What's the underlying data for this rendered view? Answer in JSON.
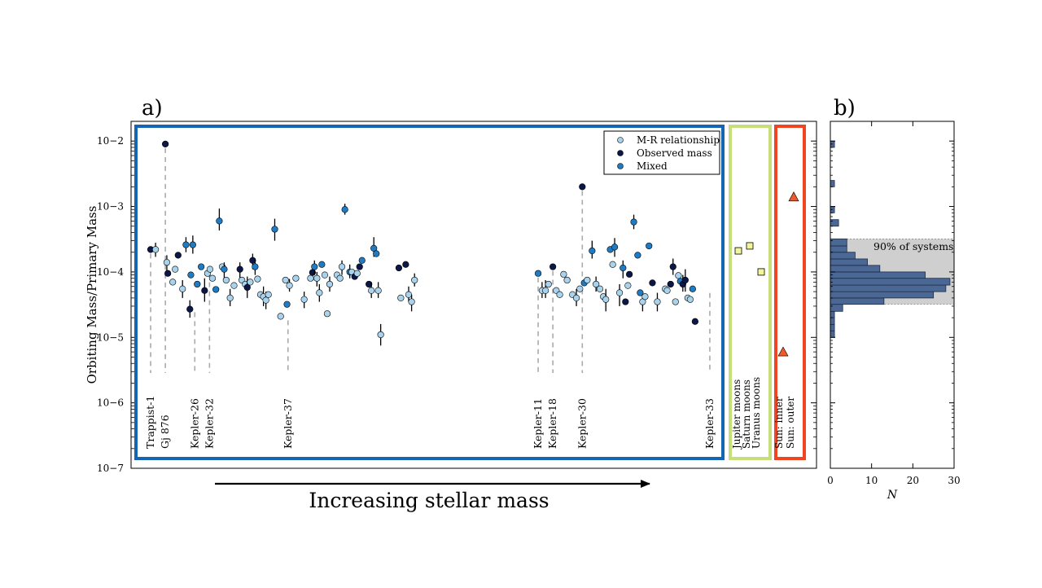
{
  "panels": {
    "a": {
      "label": "a)",
      "ylabel": "Orbiting Mass/Primary Mass",
      "arrow_label": "Increasing stellar mass"
    },
    "b": {
      "label": "b)",
      "xlabel": "N",
      "annotation": "90% of systems"
    }
  },
  "colors": {
    "mr": "#a9d3ec",
    "observed": "#0b1746",
    "mixed": "#1f7cc4",
    "exoplanet_box": "#1565b5",
    "moons_box": "#c7df7b",
    "moons_marker": "#f2f59a",
    "sun_box": "#ef4522",
    "sun_marker": "#f05a28",
    "hist_fill": "#4b6895",
    "shade": "#cfcfcf",
    "errorbar": "#000000",
    "dashed": "#aaaaaa"
  },
  "chart_data": [
    {
      "type": "scatter",
      "panel": "a",
      "ylabel": "Orbiting Mass/Primary Mass",
      "yscale": "log",
      "ylim": [
        1e-07,
        0.02
      ],
      "yticks": [
        {
          "value": 1e-07,
          "label": "10−7"
        },
        {
          "value": 1e-06,
          "label": "10−6"
        },
        {
          "value": 1e-05,
          "label": "10−5"
        },
        {
          "value": 0.0001,
          "label": "10−4"
        },
        {
          "value": 0.001,
          "label": "10−3"
        },
        {
          "value": 0.01,
          "label": "10−2"
        }
      ],
      "legend": {
        "position": "top-right",
        "entries": [
          {
            "label": "M-R relationship",
            "type": "mr"
          },
          {
            "label": "Observed mass",
            "type": "observed"
          },
          {
            "label": "Mixed",
            "type": "mixed"
          }
        ]
      },
      "system_labels": [
        {
          "label": "Trappist-1",
          "x": 2,
          "y": 0.00022
        },
        {
          "label": "Gj 876",
          "x": 5,
          "y": 0.009
        },
        {
          "label": "Kepler-26",
          "x": 11,
          "y": 2.8e-05
        },
        {
          "label": "Kepler-32",
          "x": 14,
          "y": 0.00011
        },
        {
          "label": "Kepler-37",
          "x": 30,
          "y": 2.1e-05
        },
        {
          "label": "Kepler-11",
          "x": 81,
          "y": 9.5e-05
        },
        {
          "label": "Kepler-18",
          "x": 84,
          "y": 0.00012
        },
        {
          "label": "Kepler-30",
          "x": 90,
          "y": 0.002
        },
        {
          "label": "Kepler-33",
          "x": 116,
          "y": 5.5e-05
        }
      ],
      "points": [
        {
          "x": 2,
          "y": 0.00022,
          "t": "observed"
        },
        {
          "x": 3,
          "y": 0.00022,
          "t": "mr",
          "lo": 0.00017,
          "hi": 0.00028
        },
        {
          "x": 5,
          "y": 0.009,
          "t": "observed"
        },
        {
          "x": 5.3,
          "y": 0.00014,
          "t": "mr",
          "lo": 0.0001,
          "hi": 0.00018
        },
        {
          "x": 5.5,
          "y": 9.5e-05,
          "t": "observed"
        },
        {
          "x": 6.5,
          "y": 7e-05,
          "t": "mr"
        },
        {
          "x": 7,
          "y": 0.00011,
          "t": "mr"
        },
        {
          "x": 7.6,
          "y": 0.00018,
          "t": "observed"
        },
        {
          "x": 8.5,
          "y": 5.5e-05,
          "t": "mr",
          "lo": 4e-05,
          "hi": 7.5e-05
        },
        {
          "x": 9.2,
          "y": 0.00026,
          "t": "mixed",
          "lo": 0.0002,
          "hi": 0.00034
        },
        {
          "x": 10.6,
          "y": 0.00026,
          "t": "mixed",
          "lo": 0.00019,
          "hi": 0.00036
        },
        {
          "x": 10,
          "y": 2.7e-05,
          "t": "observed",
          "lo": 2e-05,
          "hi": 3.7e-05
        },
        {
          "x": 10.2,
          "y": 9e-05,
          "t": "mixed"
        },
        {
          "x": 11.5,
          "y": 6.5e-05,
          "t": "mixed"
        },
        {
          "x": 12.3,
          "y": 0.00012,
          "t": "mixed"
        },
        {
          "x": 13,
          "y": 5.2e-05,
          "t": "observed",
          "lo": 3.5e-05,
          "hi": 8e-05
        },
        {
          "x": 13.6,
          "y": 9.5e-05,
          "t": "mr"
        },
        {
          "x": 14.1,
          "y": 0.00011,
          "t": "mr"
        },
        {
          "x": 14.6,
          "y": 8e-05,
          "t": "mr"
        },
        {
          "x": 15.3,
          "y": 5.4e-05,
          "t": "mixed"
        },
        {
          "x": 16,
          "y": 0.0006,
          "t": "mixed",
          "lo": 0.00043,
          "hi": 0.00093
        },
        {
          "x": 16.6,
          "y": 0.00012,
          "t": "mr"
        },
        {
          "x": 17,
          "y": 0.00011,
          "t": "mixed",
          "lo": 8e-05,
          "hi": 0.00014
        },
        {
          "x": 17.4,
          "y": 7.5e-05,
          "t": "mr"
        },
        {
          "x": 18.2,
          "y": 4e-05,
          "t": "mr",
          "lo": 3e-05,
          "hi": 5.5e-05
        },
        {
          "x": 19,
          "y": 6.2e-05,
          "t": "mr"
        },
        {
          "x": 20.2,
          "y": 0.00011,
          "t": "observed",
          "lo": 8e-05,
          "hi": 0.00014
        },
        {
          "x": 20.6,
          "y": 7.5e-05,
          "t": "mr"
        },
        {
          "x": 21.3,
          "y": 6.5e-05,
          "t": "mr"
        },
        {
          "x": 21.7,
          "y": 5.8e-05,
          "t": "observed",
          "lo": 4e-05,
          "hi": 8.5e-05
        },
        {
          "x": 22.3,
          "y": 7e-05,
          "t": "mr"
        },
        {
          "x": 22.8,
          "y": 0.00015,
          "t": "observed",
          "lo": 0.00011,
          "hi": 0.00019
        },
        {
          "x": 23.3,
          "y": 0.00012,
          "t": "mixed",
          "lo": 9e-05,
          "hi": 0.00016
        },
        {
          "x": 23.8,
          "y": 7.8e-05,
          "t": "mr"
        },
        {
          "x": 24.4,
          "y": 4.5e-05,
          "t": "mr"
        },
        {
          "x": 25,
          "y": 4.2e-05,
          "t": "mr",
          "lo": 3e-05,
          "hi": 6e-05
        },
        {
          "x": 25.5,
          "y": 3.7e-05,
          "t": "mr",
          "lo": 2.7e-05,
          "hi": 5e-05
        },
        {
          "x": 26,
          "y": 4.5e-05,
          "t": "mr"
        },
        {
          "x": 27.3,
          "y": 0.00045,
          "t": "mixed",
          "lo": 0.0003,
          "hi": 0.00065
        },
        {
          "x": 28.5,
          "y": 2.1e-05,
          "t": "mr"
        },
        {
          "x": 29.5,
          "y": 7.5e-05,
          "t": "mr"
        },
        {
          "x": 29.8,
          "y": 3.2e-05,
          "t": "mixed"
        },
        {
          "x": 30.3,
          "y": 6.2e-05,
          "t": "mr",
          "lo": 5e-05,
          "hi": 7.8e-05
        },
        {
          "x": 31.6,
          "y": 8e-05,
          "t": "mr"
        },
        {
          "x": 33.3,
          "y": 3.8e-05,
          "t": "mr",
          "lo": 2.8e-05,
          "hi": 5e-05
        },
        {
          "x": 34.6,
          "y": 8e-05,
          "t": "mr"
        },
        {
          "x": 35,
          "y": 9.8e-05,
          "t": "observed"
        },
        {
          "x": 35.4,
          "y": 0.00012,
          "t": "mixed",
          "lo": 9e-05,
          "hi": 0.00015
        },
        {
          "x": 35.9,
          "y": 8e-05,
          "t": "mr",
          "lo": 6e-05,
          "hi": 0.0001
        },
        {
          "x": 36.4,
          "y": 4.8e-05,
          "t": "mr",
          "lo": 3.5e-05,
          "hi": 6.5e-05
        },
        {
          "x": 36.9,
          "y": 0.00013,
          "t": "mixed"
        },
        {
          "x": 37.5,
          "y": 9e-05,
          "t": "mr"
        },
        {
          "x": 38,
          "y": 2.3e-05,
          "t": "mr"
        },
        {
          "x": 38.5,
          "y": 6.5e-05,
          "t": "mr",
          "lo": 5e-05,
          "hi": 8.5e-05
        },
        {
          "x": 40,
          "y": 9e-05,
          "t": "mr"
        },
        {
          "x": 40.6,
          "y": 8e-05,
          "t": "mr"
        },
        {
          "x": 41,
          "y": 0.00012,
          "t": "mr",
          "lo": 9e-05,
          "hi": 0.00015
        },
        {
          "x": 41.6,
          "y": 0.0009,
          "t": "mixed",
          "lo": 0.00075,
          "hi": 0.0011
        },
        {
          "x": 42.6,
          "y": 0.0001,
          "t": "mixed",
          "lo": 8e-05,
          "hi": 0.00013
        },
        {
          "x": 43,
          "y": 0.0001,
          "t": "mr"
        },
        {
          "x": 43.6,
          "y": 8.5e-05,
          "t": "observed"
        },
        {
          "x": 44.1,
          "y": 9.5e-05,
          "t": "mr"
        },
        {
          "x": 44.6,
          "y": 0.00012,
          "t": "observed"
        },
        {
          "x": 45.1,
          "y": 0.00015,
          "t": "mixed"
        },
        {
          "x": 46.5,
          "y": 6.5e-05,
          "t": "observed"
        },
        {
          "x": 47,
          "y": 5.2e-05,
          "t": "mr",
          "lo": 4e-05,
          "hi": 7e-05
        },
        {
          "x": 47.5,
          "y": 0.00023,
          "t": "mixed",
          "lo": 0.00017,
          "hi": 0.00034
        },
        {
          "x": 48,
          "y": 0.00019,
          "t": "mixed"
        },
        {
          "x": 48.4,
          "y": 5.2e-05,
          "t": "mr",
          "lo": 4e-05,
          "hi": 7e-05
        },
        {
          "x": 48.9,
          "y": 1.1e-05,
          "t": "mr",
          "lo": 7.5e-06,
          "hi": 1.6e-05
        },
        {
          "x": 52.6,
          "y": 0.000115,
          "t": "observed"
        },
        {
          "x": 53,
          "y": 4e-05,
          "t": "mr"
        },
        {
          "x": 54,
          "y": 0.00013,
          "t": "observed"
        },
        {
          "x": 54.6,
          "y": 4.5e-05,
          "t": "mr",
          "lo": 3.5e-05,
          "hi": 6e-05
        },
        {
          "x": 55.2,
          "y": 3.5e-05,
          "t": "mr",
          "lo": 2.5e-05,
          "hi": 4.5e-05
        },
        {
          "x": 55.8,
          "y": 7.5e-05,
          "t": "mr",
          "lo": 6e-05,
          "hi": 9.5e-05
        },
        {
          "x": 81,
          "y": 9.5e-05,
          "t": "mixed"
        },
        {
          "x": 81.8,
          "y": 5.2e-05,
          "t": "mr",
          "lo": 4e-05,
          "hi": 7e-05
        },
        {
          "x": 82.5,
          "y": 5.2e-05,
          "t": "mr",
          "lo": 4e-05,
          "hi": 7.5e-05
        },
        {
          "x": 83.1,
          "y": 6.5e-05,
          "t": "mr"
        },
        {
          "x": 84,
          "y": 0.00012,
          "t": "observed"
        },
        {
          "x": 84.7,
          "y": 5.2e-05,
          "t": "mr"
        },
        {
          "x": 85.4,
          "y": 4.5e-05,
          "t": "mr"
        },
        {
          "x": 86.2,
          "y": 9.2e-05,
          "t": "mr"
        },
        {
          "x": 86.9,
          "y": 7.5e-05,
          "t": "mr"
        },
        {
          "x": 88,
          "y": 4.5e-05,
          "t": "mr"
        },
        {
          "x": 88.8,
          "y": 4e-05,
          "t": "mr",
          "lo": 3e-05,
          "hi": 5.5e-05
        },
        {
          "x": 89.5,
          "y": 5.5e-05,
          "t": "mr"
        },
        {
          "x": 90,
          "y": 0.002,
          "t": "observed"
        },
        {
          "x": 90.4,
          "y": 6.8e-05,
          "t": "mixed"
        },
        {
          "x": 91,
          "y": 7.5e-05,
          "t": "mr"
        },
        {
          "x": 92,
          "y": 0.00021,
          "t": "mixed",
          "lo": 0.00016,
          "hi": 0.0003
        },
        {
          "x": 92.8,
          "y": 6.5e-05,
          "t": "mr",
          "lo": 5e-05,
          "hi": 8.5e-05
        },
        {
          "x": 93.6,
          "y": 5.5e-05,
          "t": "mr"
        },
        {
          "x": 94.3,
          "y": 4.2e-05,
          "t": "mr"
        },
        {
          "x": 94.8,
          "y": 3.8e-05,
          "t": "mr",
          "lo": 2.5e-05,
          "hi": 5.5e-05
        },
        {
          "x": 95.7,
          "y": 0.00022,
          "t": "mixed"
        },
        {
          "x": 96.2,
          "y": 0.00013,
          "t": "mr"
        },
        {
          "x": 96.6,
          "y": 0.00024,
          "t": "mixed",
          "lo": 0.00017,
          "hi": 0.00033
        },
        {
          "x": 97.6,
          "y": 4.8e-05,
          "t": "mr",
          "lo": 3e-05,
          "hi": 6.5e-05
        },
        {
          "x": 98.3,
          "y": 0.000115,
          "t": "mixed",
          "lo": 8e-05,
          "hi": 0.00015
        },
        {
          "x": 98.8,
          "y": 3.5e-05,
          "t": "observed"
        },
        {
          "x": 99.3,
          "y": 6.2e-05,
          "t": "mr"
        },
        {
          "x": 99.6,
          "y": 9.2e-05,
          "t": "observed"
        },
        {
          "x": 100.5,
          "y": 0.00058,
          "t": "mixed",
          "lo": 0.00045,
          "hi": 0.00075
        },
        {
          "x": 101.3,
          "y": 0.00018,
          "t": "mixed"
        },
        {
          "x": 101.8,
          "y": 4.8e-05,
          "t": "mixed"
        },
        {
          "x": 102.3,
          "y": 3.5e-05,
          "t": "mr",
          "lo": 2.5e-05,
          "hi": 4.5e-05
        },
        {
          "x": 102.8,
          "y": 4.2e-05,
          "t": "mr"
        },
        {
          "x": 103.6,
          "y": 0.00025,
          "t": "mixed"
        },
        {
          "x": 104.3,
          "y": 6.8e-05,
          "t": "observed"
        },
        {
          "x": 105.3,
          "y": 3.5e-05,
          "t": "mr",
          "lo": 2.5e-05,
          "hi": 4.8e-05
        },
        {
          "x": 106.9,
          "y": 5.5e-05,
          "t": "mr"
        },
        {
          "x": 107.3,
          "y": 5.2e-05,
          "t": "mr"
        },
        {
          "x": 108,
          "y": 6.5e-05,
          "t": "observed"
        },
        {
          "x": 108.5,
          "y": 0.00012,
          "t": "observed",
          "lo": 9e-05,
          "hi": 0.00016
        },
        {
          "x": 109,
          "y": 3.5e-05,
          "t": "mr"
        },
        {
          "x": 109.6,
          "y": 8.8e-05,
          "t": "mr"
        },
        {
          "x": 110,
          "y": 7.2e-05,
          "t": "mixed"
        },
        {
          "x": 110.5,
          "y": 6.5e-05,
          "t": "observed",
          "lo": 5e-05,
          "hi": 9e-05
        },
        {
          "x": 111,
          "y": 7.5e-05,
          "t": "observed",
          "lo": 5e-05,
          "hi": 0.00011
        },
        {
          "x": 111.5,
          "y": 4e-05,
          "t": "mr"
        },
        {
          "x": 112,
          "y": 3.8e-05,
          "t": "mr"
        },
        {
          "x": 112.5,
          "y": 5.5e-05,
          "t": "mixed"
        },
        {
          "x": 113,
          "y": 1.75e-05,
          "t": "observed"
        }
      ],
      "solar_system": {
        "labels": [
          "Jupiter moons",
          "Saturn moons",
          "Uranus moons",
          "Sun: inner",
          "Sun: outer"
        ],
        "moons": [
          {
            "name": "Jupiter moons",
            "y": 0.00021
          },
          {
            "name": "Saturn moons",
            "y": 0.00025
          },
          {
            "name": "Uranus moons",
            "y": 0.0001
          }
        ],
        "sun": [
          {
            "name": "Sun: inner",
            "y": 6e-06
          },
          {
            "name": "Sun: outer",
            "y": 0.0014
          }
        ]
      }
    },
    {
      "type": "bar",
      "panel": "b",
      "orientation": "horizontal",
      "xlabel": "N",
      "xlim": [
        0,
        30
      ],
      "xticks": [
        0,
        10,
        20,
        30
      ],
      "yscale": "log",
      "ylim": [
        1e-07,
        0.02
      ],
      "bins": [
        {
          "lo": 1e-05,
          "hi": 1.26e-05,
          "count": 1
        },
        {
          "lo": 1.26e-05,
          "hi": 1.58e-05,
          "count": 1
        },
        {
          "lo": 1.58e-05,
          "hi": 2e-05,
          "count": 1
        },
        {
          "lo": 2e-05,
          "hi": 2.5e-05,
          "count": 1
        },
        {
          "lo": 2.5e-05,
          "hi": 3.2e-05,
          "count": 3
        },
        {
          "lo": 3.2e-05,
          "hi": 4e-05,
          "count": 13
        },
        {
          "lo": 4e-05,
          "hi": 5e-05,
          "count": 25
        },
        {
          "lo": 5e-05,
          "hi": 6.3e-05,
          "count": 28
        },
        {
          "lo": 6.3e-05,
          "hi": 8e-05,
          "count": 29
        },
        {
          "lo": 8e-05,
          "hi": 0.0001,
          "count": 23
        },
        {
          "lo": 0.0001,
          "hi": 0.000126,
          "count": 12
        },
        {
          "lo": 0.000126,
          "hi": 0.000158,
          "count": 9
        },
        {
          "lo": 0.000158,
          "hi": 0.0002,
          "count": 6
        },
        {
          "lo": 0.0002,
          "hi": 0.00025,
          "count": 4
        },
        {
          "lo": 0.00025,
          "hi": 0.00032,
          "count": 4
        },
        {
          "lo": 0.0005,
          "hi": 0.00063,
          "count": 2
        },
        {
          "lo": 0.0008,
          "hi": 0.001,
          "count": 1
        },
        {
          "lo": 0.002,
          "hi": 0.0025,
          "count": 1
        },
        {
          "lo": 0.008,
          "hi": 0.01,
          "count": 1
        }
      ],
      "shaded_range": [
        3.2e-05,
        0.00032
      ]
    }
  ]
}
